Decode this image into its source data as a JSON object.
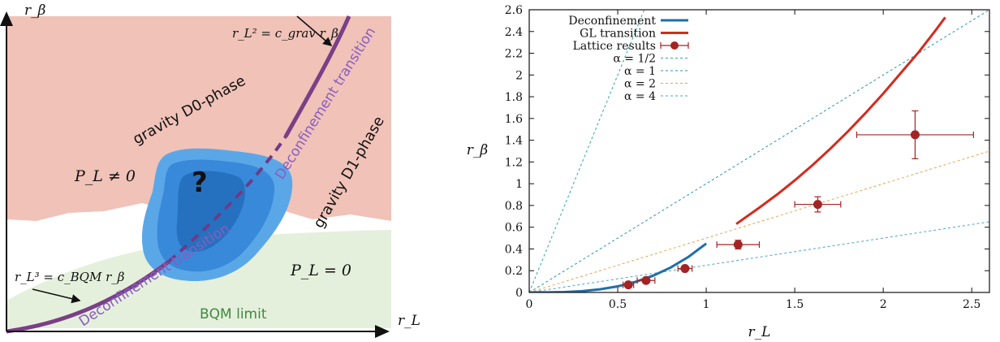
{
  "phase_diagram": {
    "y_axis_label": "r_β",
    "x_axis_label": "r_L",
    "gravity_d0": "gravity D0-phase",
    "gravity_d1": "gravity D1-phase",
    "pl_nonzero": "P_L ≠ 0",
    "pl_zero": "P_L = 0",
    "bqm_limit": "BQM limit",
    "question": "?",
    "deconfinement_upper": "Deconfinement transition",
    "deconfinement_lower": "Deconfinement transition",
    "grav_relation": "r_L² = c_grav r_β",
    "bqm_relation": "r_L³ = c_BQM r_β",
    "colors": {
      "gravity_region": "#f0c2b8",
      "bqm_region": "#e4f0dc",
      "blob_outer": "#5aa7e8",
      "blob_mid": "#3889d9",
      "blob_inner": "#2671bf",
      "transition_line": "#7a3f86",
      "transition_text": "#8a5cc0",
      "bqm_text": "#3f8a3f"
    }
  },
  "chart_data": {
    "type": "line",
    "title": "",
    "xlabel": "r_L",
    "ylabel": "r_β",
    "xlim": [
      0,
      2.6
    ],
    "ylim": [
      0,
      2.6
    ],
    "xticks": [
      0,
      0.5,
      1,
      1.5,
      2,
      2.5
    ],
    "yticks": [
      0,
      0.2,
      0.4,
      0.6,
      0.8,
      1,
      1.2,
      1.4,
      1.6,
      1.8,
      2,
      2.2,
      2.4,
      2.6
    ],
    "legend_position": "top-left",
    "series": [
      {
        "name": "Deconfinement",
        "kind": "curve",
        "color": "#1f6fa8",
        "x": [
          0,
          0.1,
          0.2,
          0.3,
          0.4,
          0.5,
          0.6,
          0.7,
          0.8,
          0.9,
          1.0
        ],
        "y": [
          0,
          0.0005,
          0.004,
          0.0122,
          0.0288,
          0.0563,
          0.0972,
          0.1544,
          0.2304,
          0.3281,
          0.45
        ]
      },
      {
        "name": "GL transition",
        "kind": "curve",
        "color": "#d62a1e",
        "x": [
          1.17,
          1.3,
          1.4,
          1.5,
          1.6,
          1.7,
          1.8,
          1.9,
          2.0,
          2.1,
          2.2,
          2.3,
          2.35
        ],
        "y": [
          0.63,
          0.78,
          0.9,
          1.03,
          1.17,
          1.32,
          1.48,
          1.65,
          1.83,
          2.02,
          2.21,
          2.42,
          2.53
        ]
      },
      {
        "name": "Lattice results",
        "kind": "points",
        "color": "#a32424",
        "points": [
          {
            "x": 0.56,
            "y": 0.07,
            "xerr": 0.03,
            "yerr": 0.02
          },
          {
            "x": 0.66,
            "y": 0.11,
            "xerr": 0.05,
            "yerr": 0.02
          },
          {
            "x": 0.88,
            "y": 0.22,
            "xerr": 0.04,
            "yerr": 0.02
          },
          {
            "x": 1.18,
            "y": 0.44,
            "xerr": 0.12,
            "yerr": 0.04
          },
          {
            "x": 1.63,
            "y": 0.81,
            "xerr": 0.13,
            "yerr": 0.07
          },
          {
            "x": 2.18,
            "y": 1.45,
            "xerr": 0.33,
            "yerr": 0.22
          }
        ]
      },
      {
        "name": "α = 1/2",
        "kind": "ray",
        "slope": 4.0,
        "color": "#2fa6a0"
      },
      {
        "name": "α = 1",
        "kind": "ray",
        "slope": 1.0,
        "color": "#2a93b5"
      },
      {
        "name": "α = 2",
        "kind": "ray",
        "slope": 0.5,
        "color": "#e6a14f"
      },
      {
        "name": "α = 4",
        "kind": "ray",
        "slope": 0.25,
        "color": "#4aa3c9"
      }
    ]
  }
}
